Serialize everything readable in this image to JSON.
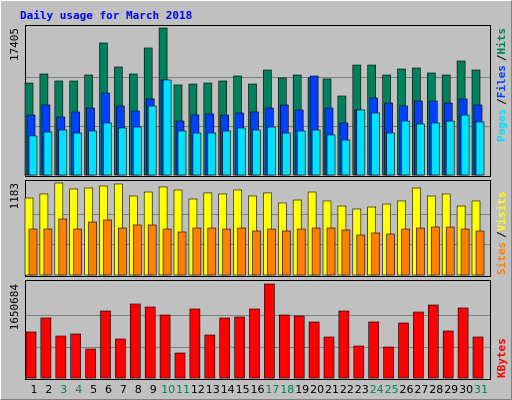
{
  "chart_data": [
    {
      "type": "bar",
      "title": "Daily usage for March 2018",
      "categories": [
        "1",
        "2",
        "3",
        "4",
        "5",
        "6",
        "7",
        "8",
        "9",
        "10",
        "11",
        "12",
        "13",
        "14",
        "15",
        "16",
        "17",
        "18",
        "19",
        "20",
        "21",
        "22",
        "23",
        "24",
        "25",
        "26",
        "27",
        "28",
        "29",
        "30",
        "31"
      ],
      "category_colors": [
        "#000000",
        "#000000",
        "#00805c",
        "#00805c",
        "#000000",
        "#000000",
        "#000000",
        "#000000",
        "#000000",
        "#00805c",
        "#00805c",
        "#000000",
        "#000000",
        "#000000",
        "#000000",
        "#000000",
        "#00805c",
        "#00805c",
        "#000000",
        "#000000",
        "#000000",
        "#000000",
        "#000000",
        "#00805c",
        "#00805c",
        "#000000",
        "#000000",
        "#000000",
        "#000000",
        "#000000",
        "#00805c"
      ],
      "legend_separator": "/",
      "ylim": [
        0,
        17405
      ],
      "yticks": [
        17405
      ],
      "series": [
        {
          "name": "Hits",
          "color": "#00805c",
          "values": [
            10890,
            11960,
            11130,
            11130,
            11840,
            15630,
            12790,
            11960,
            15040,
            17405,
            10660,
            10770,
            10890,
            11130,
            11720,
            10770,
            12430,
            11490,
            11840,
            11490,
            11370,
            9350,
            13020,
            13020,
            11840,
            12550,
            12670,
            12080,
            11840,
            13500,
            12430
          ]
        },
        {
          "name": "Files",
          "color": "#0040ff",
          "values": [
            7100,
            8290,
            6870,
            7460,
            7930,
            9710,
            8170,
            7580,
            9000,
            11250,
            6390,
            7100,
            7220,
            7100,
            7340,
            7460,
            7930,
            8290,
            7700,
            11720,
            7930,
            6160,
            7700,
            9120,
            8520,
            8170,
            8760,
            8760,
            8520,
            9000,
            8290
          ]
        },
        {
          "name": "Pages",
          "color": "#00e0ff",
          "values": [
            4620,
            5090,
            5330,
            4970,
            5210,
            6160,
            5560,
            5680,
            8170,
            11250,
            5210,
            4970,
            4970,
            5210,
            5560,
            5330,
            5680,
            4970,
            5210,
            5330,
            4740,
            4140,
            7700,
            7340,
            4970,
            6390,
            6040,
            6160,
            6390,
            7100,
            6280
          ]
        }
      ]
    },
    {
      "type": "bar",
      "ylim": [
        0,
        1183
      ],
      "yticks": [
        1183
      ],
      "series": [
        {
          "name": "Visits",
          "color": "#ffff00",
          "values": [
            990,
            1042,
            1183,
            1106,
            1119,
            1144,
            1170,
            1016,
            1067,
            1132,
            1093,
            977,
            1055,
            1042,
            1093,
            1016,
            1055,
            926,
            964,
            1067,
            952,
            887,
            849,
            874,
            913,
            952,
            1119,
            1016,
            1042,
            887,
            952
          ]
        },
        {
          "name": "Sites",
          "color": "#ff8000",
          "values": [
            591,
            591,
            720,
            591,
            681,
            707,
            604,
            643,
            643,
            591,
            553,
            604,
            604,
            591,
            604,
            566,
            591,
            566,
            591,
            604,
            604,
            579,
            514,
            540,
            527,
            591,
            604,
            617,
            617,
            591,
            566
          ]
        }
      ]
    },
    {
      "type": "bar",
      "ylim": [
        0,
        1650684
      ],
      "yticks": [
        1650684
      ],
      "series": [
        {
          "name": "KBytes",
          "color": "#ff0000",
          "values": [
            808000,
            1053600,
            737500,
            772600,
            509300,
            1176500,
            684900,
            1299500,
            1246800,
            1106300,
            439000,
            1211700,
            755100,
            1053600,
            1071200,
            1211700,
            1650684,
            1106300,
            1088700,
            983400,
            720000,
            1176500,
            561900,
            983400,
            544400,
            965800,
            1159000,
            1281900,
            825400,
            1229200,
            720000
          ]
        }
      ]
    }
  ]
}
